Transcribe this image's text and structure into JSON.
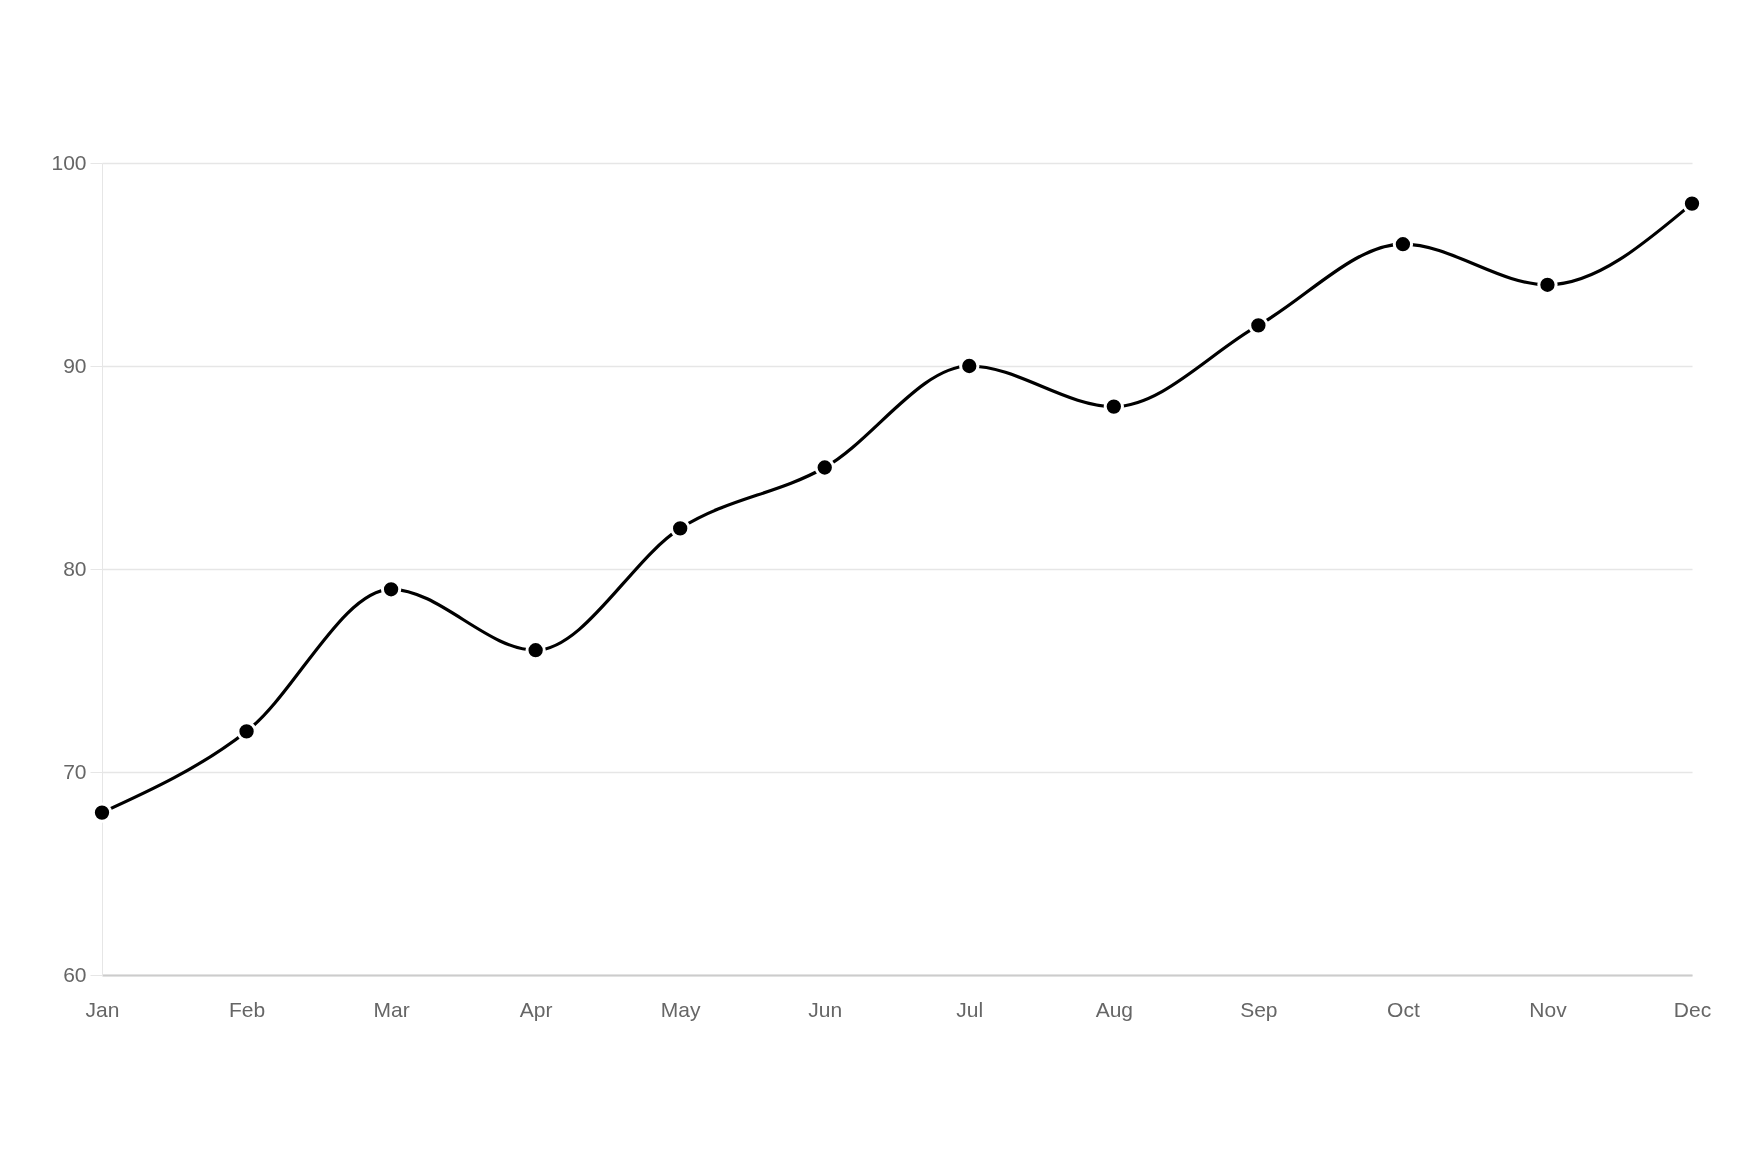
{
  "chart_data": {
    "type": "line",
    "categories": [
      "Jan",
      "Feb",
      "Mar",
      "Apr",
      "May",
      "Jun",
      "Jul",
      "Aug",
      "Sep",
      "Oct",
      "Nov",
      "Dec"
    ],
    "series": [
      {
        "color": "#000000",
        "values": [
          68,
          72,
          79,
          76,
          82,
          85,
          90,
          88,
          92,
          96,
          94,
          98
        ]
      }
    ],
    "ylim": [
      60,
      100
    ],
    "yticks": [
      60,
      70,
      80,
      90,
      100
    ],
    "grid": "y",
    "marker": "circle",
    "line_style": "solid"
  }
}
